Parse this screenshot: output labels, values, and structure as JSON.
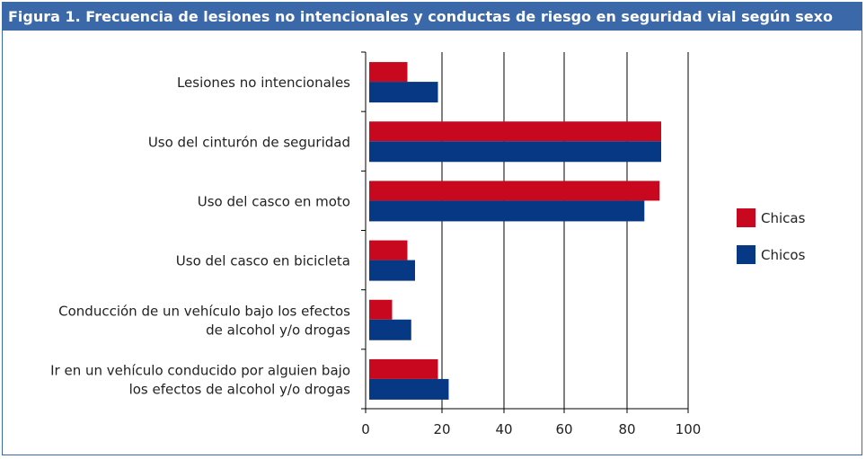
{
  "title": "Figura 1.  Frecuencia de lesiones no intencionales y conductas de riesgo en seguridad vial según sexo",
  "chart_data": {
    "type": "bar",
    "orientation": "horizontal",
    "title": "Figura 1.  Frecuencia de lesiones no intencionales y conductas de riesgo en seguridad vial según sexo",
    "categories": [
      [
        "Lesiones no intencionales"
      ],
      [
        "Uso del cinturón de seguridad"
      ],
      [
        "Uso del casco en moto"
      ],
      [
        "Uso del casco en bicicleta"
      ],
      [
        "Conducción de un vehículo bajo los efectos",
        "de alcohol y/o drogas"
      ],
      [
        "Ir en un vehículo conducido por alguien bajo",
        "los efectos de alcohol y/o drogas"
      ]
    ],
    "series": [
      {
        "name": "Chicas",
        "color": "#c8081e",
        "values": [
          10,
          90,
          89.5,
          10,
          6,
          18
        ]
      },
      {
        "name": "Chicos",
        "color": "#063883",
        "values": [
          18,
          90,
          84.5,
          12,
          11,
          21
        ]
      }
    ],
    "xlim": [
      0,
      100
    ],
    "xticks": [
      "0",
      "20",
      "40",
      "60",
      "80",
      "100"
    ],
    "grid": "vertical",
    "legend": "right"
  }
}
